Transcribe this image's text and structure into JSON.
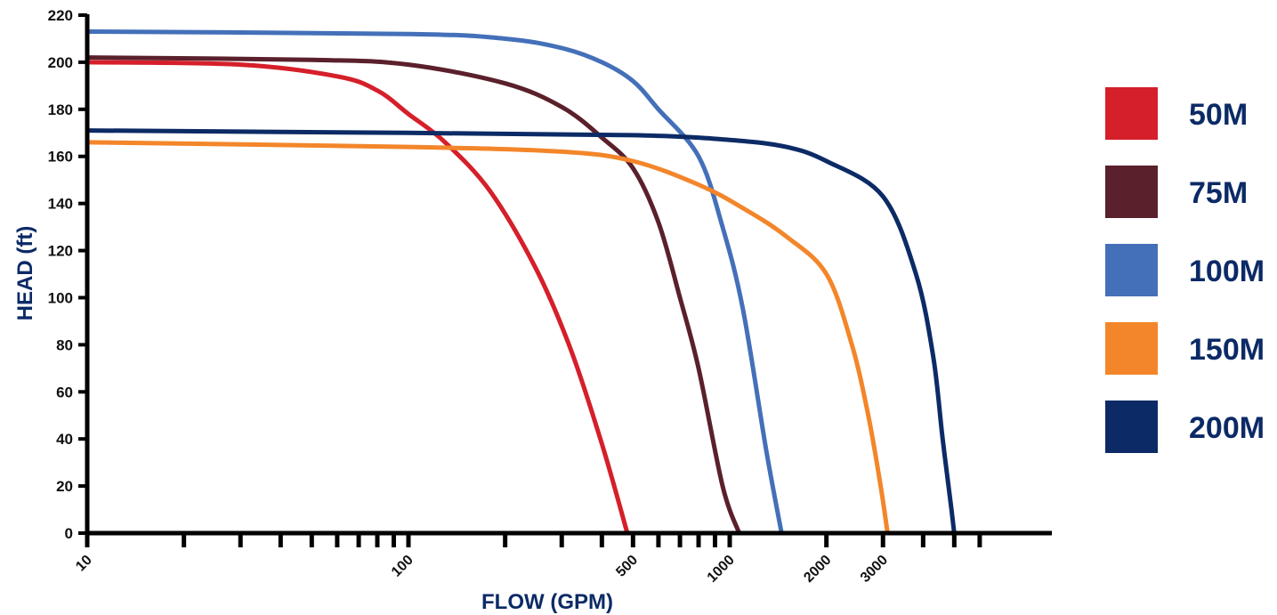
{
  "chart_data": {
    "type": "line",
    "xlabel": "FLOW (GPM)",
    "ylabel": "HEAD (ft)",
    "x_scale": "log",
    "xlim": [
      10,
      6000
    ],
    "ylim": [
      0,
      220
    ],
    "y_ticks": [
      0,
      20,
      40,
      60,
      80,
      100,
      120,
      140,
      160,
      180,
      200,
      220
    ],
    "x_tick_labels": [
      {
        "value": 10,
        "label": "10"
      },
      {
        "value": 100,
        "label": "100"
      },
      {
        "value": 500,
        "label": "500"
      },
      {
        "value": 1000,
        "label": "1000"
      },
      {
        "value": 2000,
        "label": "2000"
      },
      {
        "value": 3000,
        "label": "3000"
      }
    ],
    "x_minor_ticks": [
      20,
      30,
      40,
      50,
      60,
      70,
      80,
      90,
      200,
      300,
      400,
      600,
      700,
      800,
      900,
      4000,
      5000,
      6000
    ],
    "grid": false,
    "legend_position": "right",
    "series": [
      {
        "name": "50M",
        "color": "#d51f2a",
        "points": [
          [
            10,
            200
          ],
          [
            30,
            199
          ],
          [
            60,
            194
          ],
          [
            80,
            188
          ],
          [
            100,
            178
          ],
          [
            130,
            166
          ],
          [
            180,
            145
          ],
          [
            250,
            112
          ],
          [
            320,
            78
          ],
          [
            400,
            38
          ],
          [
            480,
            0
          ]
        ]
      },
      {
        "name": "75M",
        "color": "#5a202b",
        "points": [
          [
            10,
            202
          ],
          [
            50,
            201
          ],
          [
            100,
            199
          ],
          [
            200,
            191
          ],
          [
            300,
            181
          ],
          [
            400,
            168
          ],
          [
            500,
            155
          ],
          [
            600,
            132
          ],
          [
            700,
            100
          ],
          [
            800,
            70
          ],
          [
            950,
            20
          ],
          [
            1070,
            0
          ]
        ]
      },
      {
        "name": "100M",
        "color": "#4470b9",
        "points": [
          [
            10,
            213
          ],
          [
            100,
            212
          ],
          [
            200,
            210
          ],
          [
            300,
            206
          ],
          [
            400,
            200
          ],
          [
            500,
            192
          ],
          [
            600,
            180
          ],
          [
            800,
            160
          ],
          [
            950,
            130
          ],
          [
            1100,
            95
          ],
          [
            1300,
            35
          ],
          [
            1450,
            0
          ]
        ]
      },
      {
        "name": "150M",
        "color": "#f3862a",
        "points": [
          [
            10,
            166
          ],
          [
            100,
            164
          ],
          [
            300,
            162
          ],
          [
            500,
            158
          ],
          [
            800,
            148
          ],
          [
            1100,
            138
          ],
          [
            1500,
            126
          ],
          [
            2000,
            110
          ],
          [
            2400,
            80
          ],
          [
            2700,
            50
          ],
          [
            2950,
            20
          ],
          [
            3100,
            0
          ]
        ]
      },
      {
        "name": "200M",
        "color": "#0c2b66",
        "points": [
          [
            10,
            171
          ],
          [
            100,
            170
          ],
          [
            500,
            169
          ],
          [
            1000,
            167
          ],
          [
            1500,
            164
          ],
          [
            2000,
            158
          ],
          [
            3000,
            143
          ],
          [
            3800,
            110
          ],
          [
            4300,
            75
          ],
          [
            4600,
            40
          ],
          [
            4900,
            10
          ],
          [
            5000,
            0
          ]
        ]
      }
    ]
  }
}
